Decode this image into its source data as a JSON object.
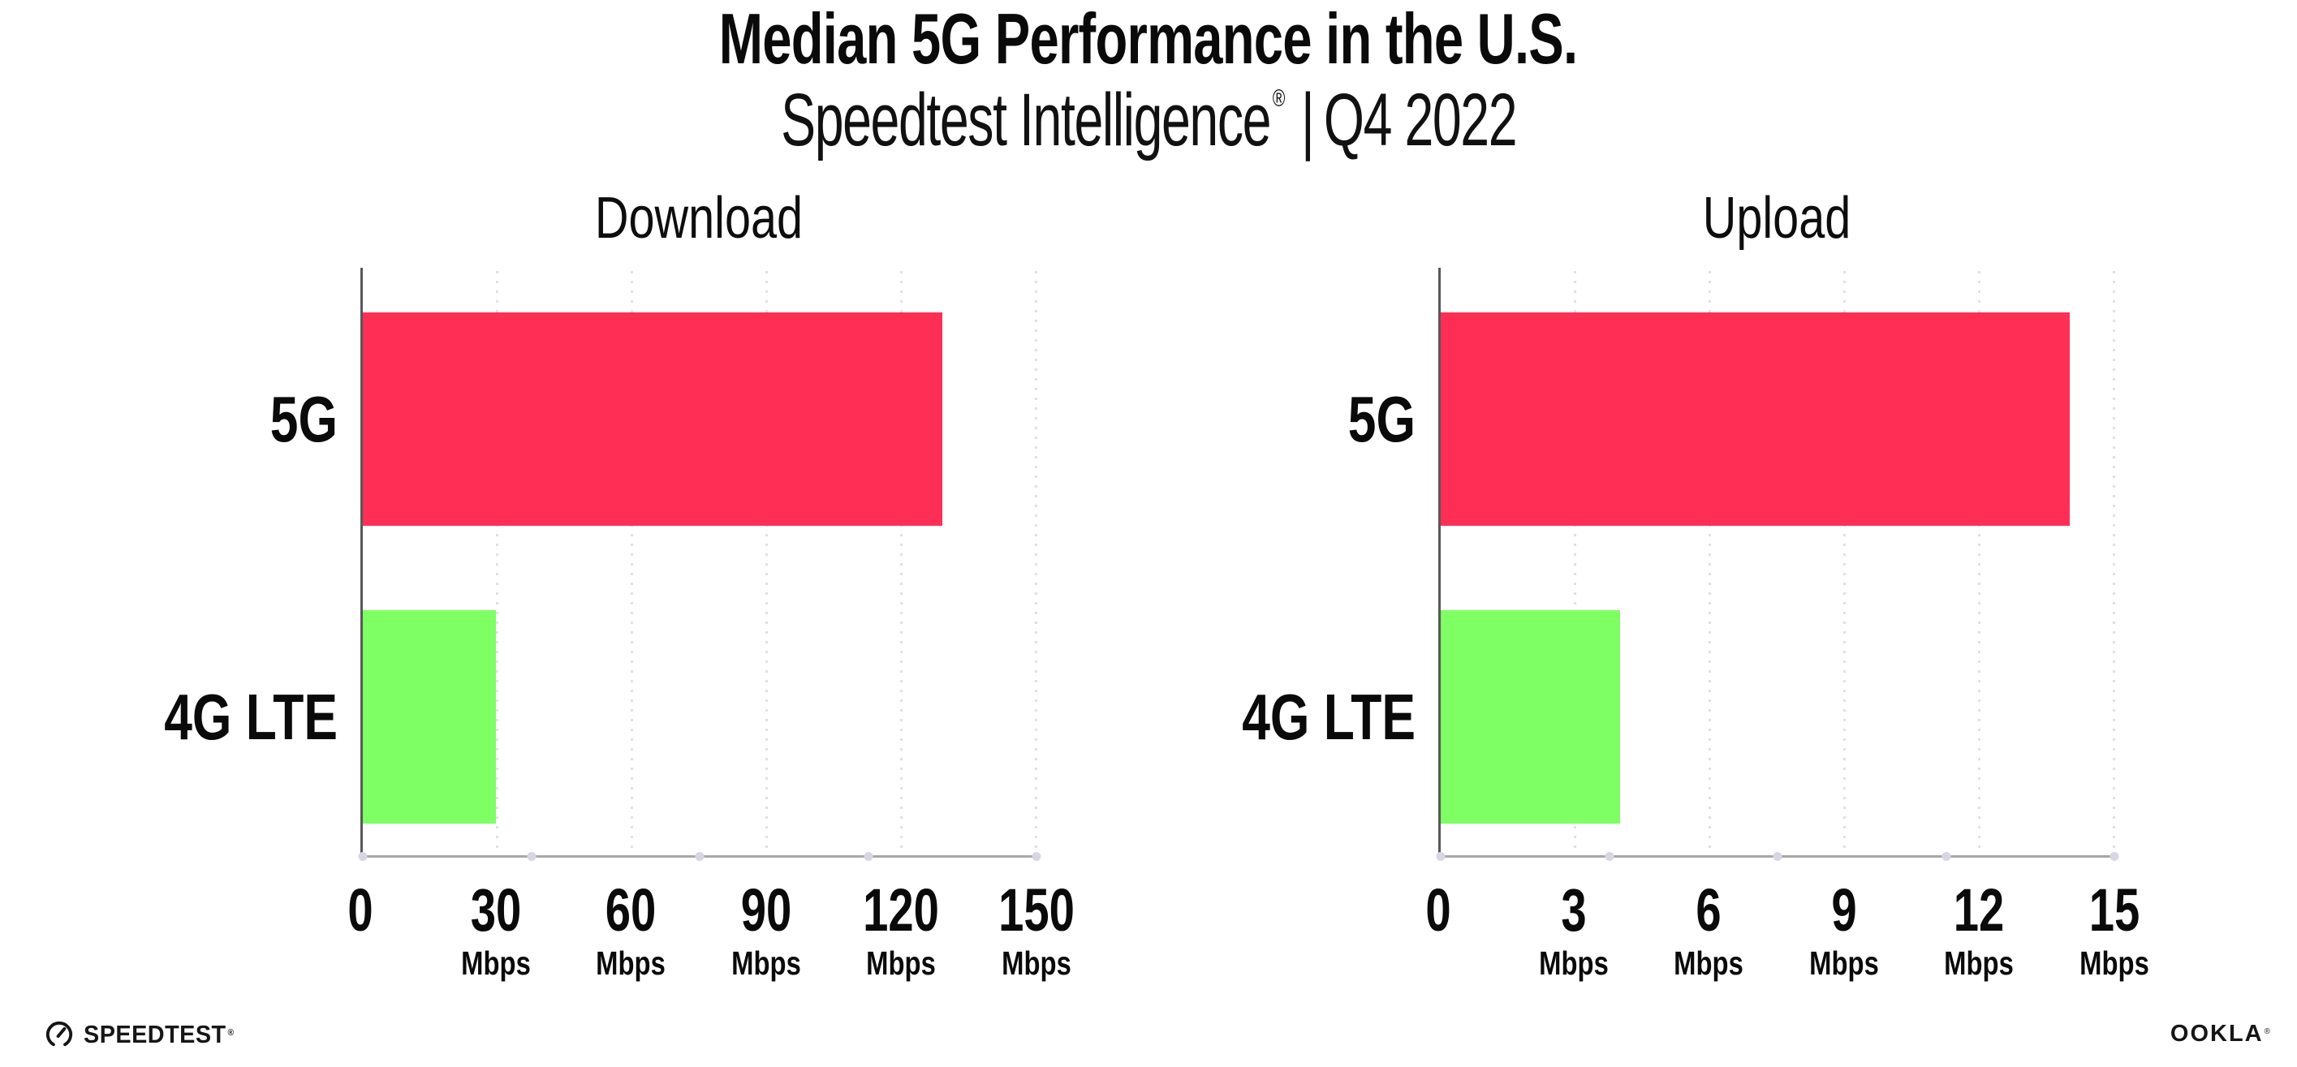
{
  "header": {
    "title": "Median 5G Performance in the U.S.",
    "subtitle_brand": "Speedtest Intelligence",
    "subtitle_reg": "®",
    "subtitle_separator": "|",
    "subtitle_period": "Q4 2022"
  },
  "colors": {
    "bar_5g": "#ff2e55",
    "bar_4g_lte": "#7eff64",
    "y_axis_line": "#58585a",
    "x_axis_line": "#a8a8a8",
    "gridline": "#e0e0ea",
    "text": "#0a0a0a"
  },
  "chart_data": [
    {
      "type": "bar",
      "orientation": "horizontal",
      "title": "Download",
      "categories": [
        "5G",
        "4G LTE"
      ],
      "values": [
        129,
        29.6
      ],
      "unit": "Mbps",
      "xlim": [
        0,
        150
      ],
      "xticks": [
        0,
        30,
        60,
        90,
        120,
        150
      ],
      "grid": "vertical-dotted",
      "bar_colors": [
        "#ff2e55",
        "#7eff64"
      ]
    },
    {
      "type": "bar",
      "orientation": "horizontal",
      "title": "Upload",
      "categories": [
        "5G",
        "4G LTE"
      ],
      "values": [
        14,
        4
      ],
      "unit": "Mbps",
      "xlim": [
        0,
        15
      ],
      "xticks": [
        0,
        3,
        6,
        9,
        12,
        15
      ],
      "grid": "vertical-dotted",
      "bar_colors": [
        "#ff2e55",
        "#7eff64"
      ]
    }
  ],
  "footer": {
    "speedtest_wordmark": "SPEEDTEST",
    "speedtest_reg": "®",
    "gauge_icon": "speedtest-gauge",
    "ookla_wordmark": "OOKLA",
    "ookla_reg": "®"
  }
}
